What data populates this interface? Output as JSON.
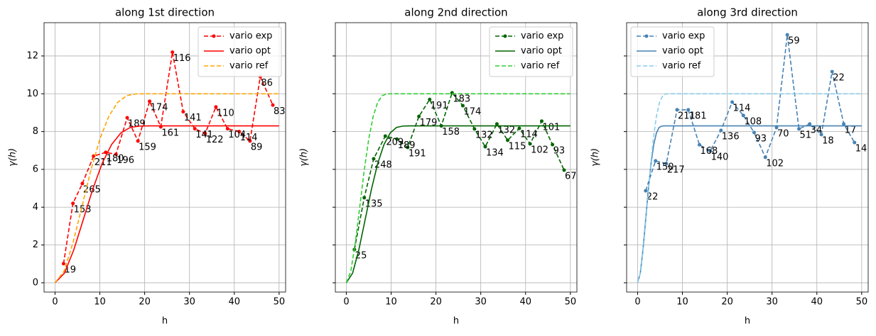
{
  "chart_data": [
    {
      "type": "line",
      "title": "along 1st direction",
      "xlabel": "h",
      "ylabel": "γ(h)",
      "xlim": [
        -2.45,
        51.45
      ],
      "xticks": [
        0,
        10,
        20,
        30,
        40,
        50
      ],
      "ylim": [
        -0.49,
        13.76
      ],
      "yticks": [
        0,
        2,
        4,
        6,
        8,
        10,
        12
      ],
      "grid": true,
      "legend": "upper right",
      "series": [
        {
          "name": "vario exp",
          "color": "#ff0000",
          "linestyle": "dashed",
          "marker": true,
          "x": [
            1.9,
            4.0,
            6.1,
            8.6,
            11.3,
            13.6,
            16.1,
            18.5,
            21.1,
            23.6,
            26.2,
            28.6,
            31.2,
            33.5,
            35.9,
            38.5,
            41.1,
            43.5,
            45.8,
            48.6
          ],
          "values": [
            1.01,
            4.2,
            5.25,
            6.7,
            6.9,
            6.8,
            8.73,
            7.5,
            9.6,
            8.25,
            12.2,
            9.05,
            8.15,
            7.9,
            9.3,
            8.15,
            8.0,
            7.5,
            10.9,
            9.4
          ],
          "counts": [
            19,
            153,
            265,
            211,
            180,
            196,
            189,
            159,
            174,
            161,
            116,
            141,
            141,
            122,
            110,
            104,
            114,
            89,
            86,
            83
          ]
        },
        {
          "name": "vario opt",
          "color": "#ff0000",
          "linestyle": "solid",
          "marker": false,
          "x": [
            0,
            2.1,
            4.2,
            6.3,
            8.4,
            10.5,
            12.6,
            14.7,
            16.8,
            18.9,
            21,
            50
          ],
          "values": [
            0,
            0.51,
            1.75,
            3.34,
            4.94,
            6.31,
            7.31,
            7.93,
            8.22,
            8.29,
            8.3,
            8.3
          ]
        },
        {
          "name": "vario ref",
          "color": "#ffa500",
          "linestyle": "dashed",
          "marker": false,
          "x": [
            0,
            2,
            4,
            6,
            8,
            10,
            12,
            14,
            16,
            18,
            20,
            50
          ],
          "values": [
            0,
            0.61,
            2.11,
            4.02,
            5.95,
            7.6,
            8.81,
            9.55,
            9.9,
            9.99,
            10,
            10
          ]
        }
      ]
    },
    {
      "type": "line",
      "title": "along 2nd direction",
      "xlabel": "h",
      "ylabel": "γ(h)",
      "xlim": [
        -2.45,
        51.45
      ],
      "xticks": [
        0,
        10,
        20,
        30,
        40,
        50
      ],
      "grid": true,
      "legend": "upper right",
      "series": [
        {
          "name": "vario exp",
          "color": "#006400",
          "linestyle": "dashed",
          "marker": true,
          "x": [
            1.8,
            4.0,
            6.1,
            8.7,
            11.3,
            13.7,
            16.2,
            18.6,
            21.2,
            23.6,
            26.0,
            28.6,
            31.0,
            33.6,
            36.0,
            38.6,
            41.0,
            43.6,
            46.0,
            48.6
          ],
          "values": [
            1.76,
            4.5,
            6.56,
            7.76,
            7.6,
            7.16,
            8.8,
            9.7,
            8.3,
            10.05,
            9.37,
            8.14,
            7.2,
            8.4,
            7.54,
            8.17,
            7.35,
            8.55,
            7.31,
            5.96
          ],
          "counts": [
            25,
            135,
            248,
            209,
            189,
            191,
            179,
            191,
            158,
            183,
            174,
            132,
            134,
            132,
            115,
            114,
            102,
            101,
            93,
            67
          ]
        },
        {
          "name": "vario opt",
          "color": "#006400",
          "linestyle": "solid",
          "marker": false,
          "x": [
            0,
            1.4,
            2.8,
            4.2,
            5.6,
            7,
            8.4,
            9.8,
            11.2,
            12.6,
            14,
            50
          ],
          "values": [
            0,
            0.51,
            1.75,
            3.34,
            4.94,
            6.31,
            7.31,
            7.93,
            8.22,
            8.29,
            8.3,
            8.3
          ]
        },
        {
          "name": "vario ref",
          "color": "#32cd32",
          "linestyle": "dashed",
          "marker": false,
          "x": [
            0,
            1,
            2,
            3,
            4,
            5,
            6,
            7,
            8,
            9,
            10,
            50
          ],
          "values": [
            0,
            0.61,
            2.11,
            4.02,
            5.95,
            7.6,
            8.81,
            9.55,
            9.9,
            9.99,
            10,
            10
          ]
        }
      ]
    },
    {
      "type": "line",
      "title": "along 3rd direction",
      "xlabel": "h",
      "ylabel": "γ(h)",
      "xlim": [
        -2.45,
        51.45
      ],
      "xticks": [
        0,
        10,
        20,
        30,
        40,
        50
      ],
      "grid": true,
      "legend": "upper left",
      "series": [
        {
          "name": "vario exp",
          "color": "#4682b4",
          "linestyle": "dashed",
          "marker": true,
          "x": [
            1.8,
            4.0,
            6.4,
            8.8,
            11.3,
            13.8,
            16.2,
            18.6,
            21.1,
            23.6,
            26.0,
            28.5,
            31.0,
            33.4,
            36.0,
            38.4,
            41.0,
            43.4,
            46.0,
            48.4
          ],
          "values": [
            4.87,
            6.45,
            6.3,
            9.15,
            9.15,
            7.3,
            6.97,
            8.06,
            9.56,
            8.85,
            7.95,
            6.64,
            8.21,
            13.12,
            8.14,
            8.4,
            7.84,
            11.17,
            8.4,
            7.42
          ],
          "counts": [
            22,
            150,
            217,
            211,
            181,
            168,
            140,
            136,
            114,
            108,
            93,
            102,
            70,
            59,
            51,
            34,
            18,
            22,
            17,
            14
          ]
        },
        {
          "name": "vario opt",
          "color": "#4682b4",
          "linestyle": "solid",
          "marker": false,
          "x": [
            0,
            0.6,
            1.2,
            1.8,
            2.4,
            3,
            3.6,
            4.2,
            4.8,
            5.4,
            6,
            50
          ],
          "values": [
            0,
            0.51,
            1.75,
            3.34,
            4.94,
            6.31,
            7.31,
            7.93,
            8.22,
            8.29,
            8.3,
            8.3
          ]
        },
        {
          "name": "vario ref",
          "color": "#87ceeb",
          "linestyle": "dashed",
          "marker": false,
          "x": [
            0,
            0.7,
            1.4,
            2.1,
            2.8,
            3.5,
            4.2,
            4.9,
            5.6,
            6.3,
            7,
            50
          ],
          "values": [
            0,
            0.61,
            2.11,
            4.02,
            5.95,
            7.6,
            8.81,
            9.55,
            9.9,
            9.99,
            10,
            10
          ]
        }
      ]
    }
  ]
}
